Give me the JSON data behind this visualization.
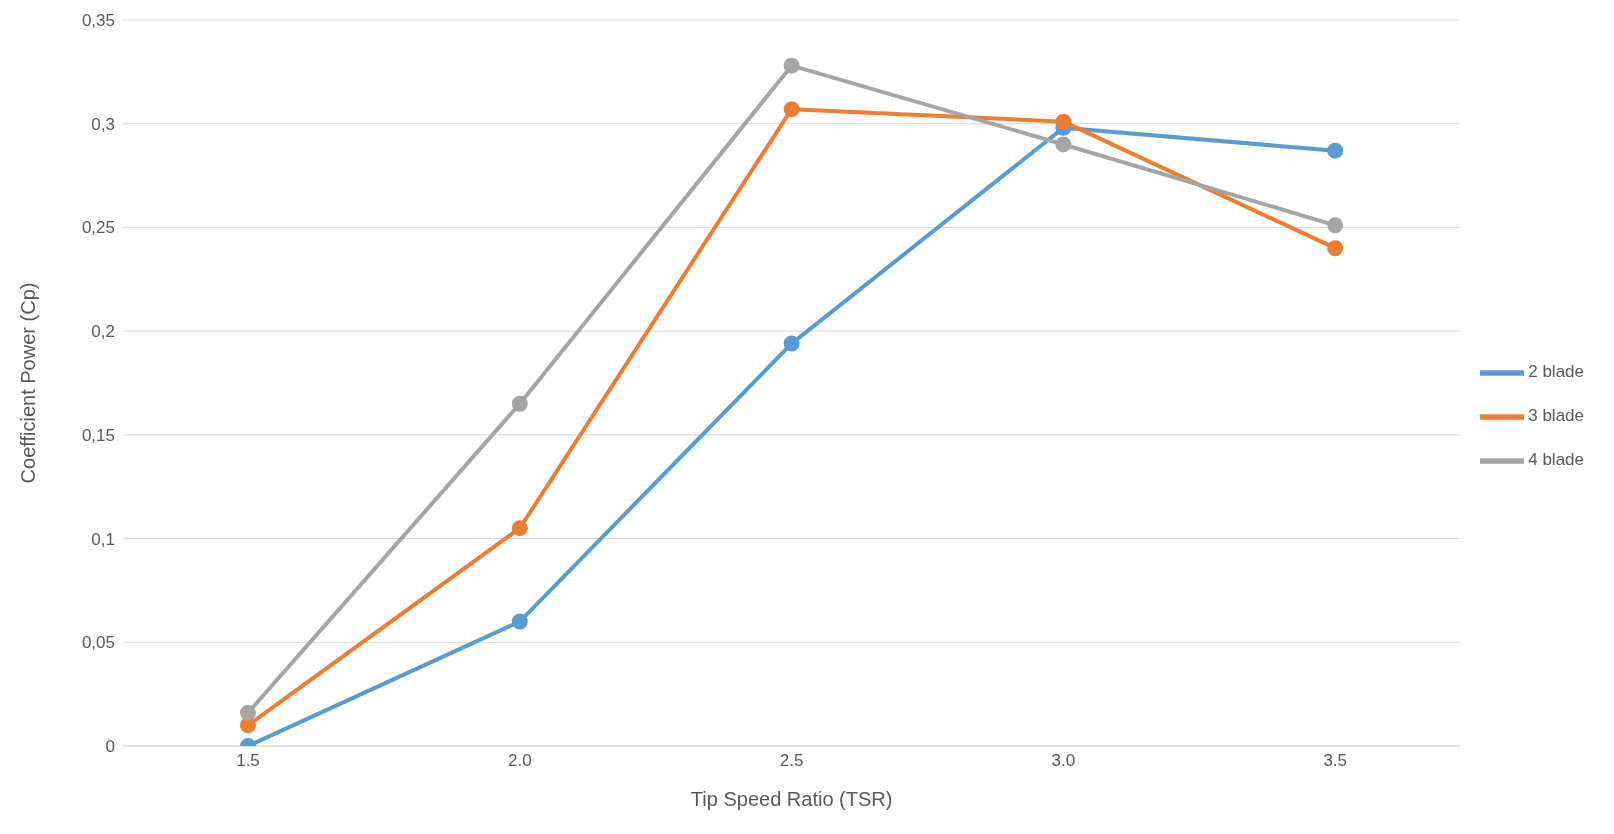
{
  "chart_data": {
    "type": "line",
    "xlabel": "Tip Speed Ratio (TSR)",
    "ylabel": "Coefficient Power (Cp)",
    "categories": [
      "1.5",
      "2.0",
      "2.5",
      "3.0",
      "3.5"
    ],
    "series": [
      {
        "name": "2 blade",
        "color": "#5b9bd5",
        "values": [
          0,
          0.06,
          0.194,
          0.298,
          0.287
        ]
      },
      {
        "name": "3 blade",
        "color": "#ed7d31",
        "values": [
          0.01,
          0.105,
          0.307,
          0.301,
          0.24
        ]
      },
      {
        "name": "4 blade",
        "color": "#a5a5a5",
        "values": [
          0.016,
          0.165,
          0.328,
          0.29,
          0.251
        ]
      }
    ],
    "ylim": [
      0,
      0.35
    ],
    "yticks": [
      0,
      {
        "value": 0.05,
        "label": "0,05"
      },
      {
        "value": 0.1,
        "label": "0,1"
      },
      {
        "value": 0.15,
        "label": "0,15"
      },
      {
        "value": 0.2,
        "label": "0,2"
      },
      {
        "value": 0.25,
        "label": "0,25"
      },
      {
        "value": 0.3,
        "label": "0,3"
      },
      {
        "value": 0.35,
        "label": "0,35"
      }
    ],
    "grid": "y",
    "legend": "right",
    "marker": "circle",
    "line_style": "solid"
  }
}
